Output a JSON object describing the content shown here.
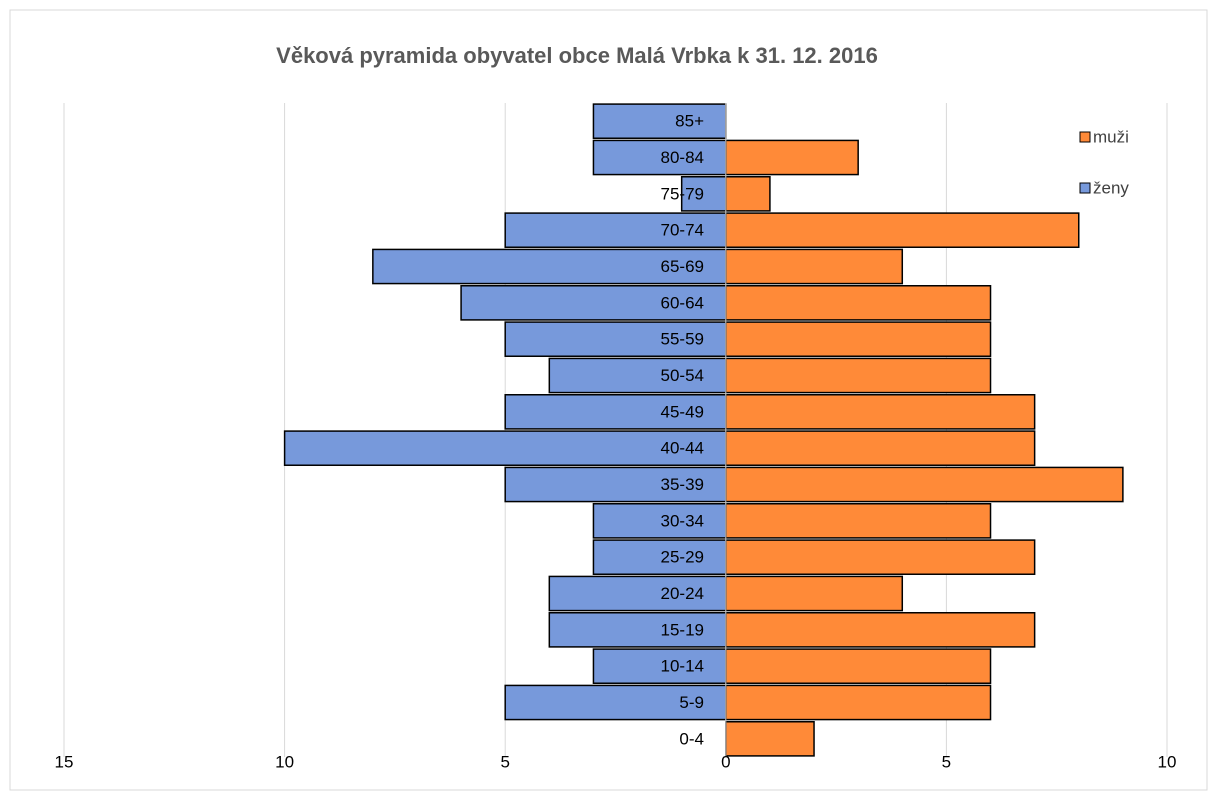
{
  "chart_data": {
    "type": "bar",
    "orientation": "horizontal",
    "stacked": true,
    "title": "Věková pyramida obyvatel obce Malá Vrbka k 31. 12. 2016",
    "categories": [
      "0-4",
      "5-9",
      "10-14",
      "15-19",
      "20-24",
      "25-29",
      "30-34",
      "35-39",
      "40-44",
      "45-49",
      "50-54",
      "55-59",
      "60-64",
      "65-69",
      "70-74",
      "75-79",
      "80-84",
      "85+"
    ],
    "series": [
      {
        "name": "muži",
        "color": "#FF8A38",
        "values": [
          2,
          6,
          6,
          7,
          4,
          7,
          6,
          9,
          7,
          7,
          6,
          6,
          6,
          4,
          8,
          1,
          3,
          0
        ]
      },
      {
        "name": "ženy",
        "color": "#7799DB",
        "values": [
          0,
          -5,
          -3,
          -4,
          -4,
          -3,
          -3,
          -5,
          -10,
          -5,
          -4,
          -5,
          -6,
          -8,
          -5,
          -1,
          -3,
          -3
        ]
      }
    ],
    "xlim": [
      -15,
      10
    ],
    "xticks": [
      {
        "value": -15,
        "label": "15"
      },
      {
        "value": -10,
        "label": "10"
      },
      {
        "value": -5,
        "label": "5"
      },
      0,
      5,
      10
    ],
    "grid": true,
    "legend": "top-right"
  }
}
